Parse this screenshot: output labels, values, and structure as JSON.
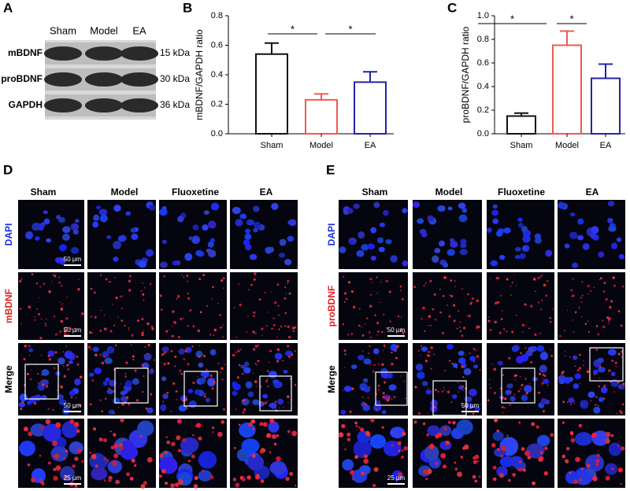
{
  "panel_labels": [
    "A",
    "B",
    "C",
    "D",
    "E"
  ],
  "blot": {
    "columns": [
      "Sham",
      "Model",
      "EA"
    ],
    "rows": [
      "mBDNF",
      "proBDNF",
      "GAPDH"
    ],
    "sizes": [
      "15 kDa",
      "30 kDa",
      "36 kDa"
    ]
  },
  "chart_data": [
    {
      "type": "bar",
      "ylabel": "mBDNF/GAPDH ratio",
      "categories": [
        "Sham",
        "Model",
        "EA"
      ],
      "values": [
        0.54,
        0.23,
        0.35
      ],
      "errors": [
        0.075,
        0.04,
        0.07
      ],
      "colors": [
        "#111111",
        "#ee5a52",
        "#2424a8"
      ],
      "ylim": [
        0,
        0.8
      ],
      "yticks": [
        {
          "value": 0,
          "label": "0.0"
        },
        0.2,
        0.4,
        0.6,
        0.8
      ],
      "annotations": [
        "*",
        "*"
      ]
    },
    {
      "type": "bar",
      "ylabel": "proBDNF/GAPDH ratio",
      "categories": [
        "Sham",
        "Model",
        "EA"
      ],
      "values": [
        0.15,
        0.75,
        0.47
      ],
      "errors": [
        0.025,
        0.12,
        0.12
      ],
      "colors": [
        "#111111",
        "#ee5a52",
        "#2424a8"
      ],
      "ylim": [
        0,
        1.0
      ],
      "yticks": [
        {
          "value": 0,
          "label": "0.0"
        },
        0.2,
        0.4,
        0.6,
        0.8,
        {
          "value": 1,
          "label": "1.0"
        }
      ],
      "annotations": [
        "*",
        "*"
      ]
    }
  ],
  "panel_D": {
    "columns": [
      "Sham",
      "Model",
      "Fluoxetine",
      "EA"
    ],
    "rows": [
      "DAPI",
      "mBDNF",
      "Merge"
    ],
    "scale_bars": [
      "50 µm",
      "50 µm",
      "50 µm",
      "25 µm"
    ]
  },
  "panel_E": {
    "columns": [
      "Sham",
      "Model",
      "Fluoxetine",
      "EA"
    ],
    "rows": [
      "DAPI",
      "proBDNF",
      "Merge"
    ],
    "scale_bars": [
      "50 µm",
      "50 µm",
      "25 µm"
    ]
  }
}
